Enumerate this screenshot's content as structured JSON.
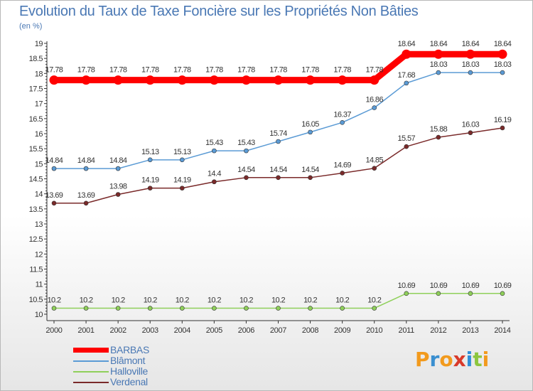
{
  "title": "Evolution du Taux de Taxe Foncière sur les Propriétés Non Bâties",
  "unit_label": "(en %)",
  "logo_text": "Proxiti",
  "colors": {
    "axis": "#333333",
    "grid_tick": "#333333",
    "label_text": "#333333",
    "title_text": "#4a78b4",
    "logo_letters": [
      "#f29a1d",
      "#3a8fd0",
      "#f29a1d",
      "#d83a2a",
      "#2f8fd8",
      "#8cc63f",
      "#f29a1d"
    ]
  },
  "chart_data": {
    "type": "line",
    "title": "Evolution du Taux de Taxe Foncière sur les Propriétés Non Bâties",
    "ylabel": "(en %)",
    "xlabel": "",
    "ylim": [
      10,
      19
    ],
    "yticks": [
      10,
      10.5,
      11,
      11.5,
      12,
      12.5,
      13,
      13.5,
      14,
      14.5,
      15,
      15.5,
      16,
      16.5,
      17,
      17.5,
      18,
      18.5,
      19
    ],
    "x": [
      2000,
      2001,
      2002,
      2003,
      2004,
      2005,
      2006,
      2007,
      2008,
      2009,
      2010,
      2011,
      2012,
      2013,
      2014
    ],
    "grid": false,
    "legend_position": "bottom-left",
    "series": [
      {
        "name": "BARBAS",
        "color": "#ff0000",
        "values": [
          17.78,
          17.78,
          17.78,
          17.78,
          17.78,
          17.78,
          17.78,
          17.78,
          17.78,
          17.78,
          17.78,
          18.64,
          18.64,
          18.64,
          18.64
        ],
        "labels": [
          "17.78",
          "17.78",
          "17.78",
          "17.78",
          "17.78",
          "17.78",
          "17.78",
          "17.78",
          "17.78",
          "17.78",
          "17.78",
          "18.64",
          "18.64",
          "18.64",
          "18.64"
        ]
      },
      {
        "name": "Blâmont",
        "color": "#5b9bd5",
        "values": [
          14.84,
          14.84,
          14.84,
          15.13,
          15.13,
          15.43,
          15.43,
          15.74,
          16.05,
          16.37,
          16.86,
          17.68,
          18.03,
          18.03,
          18.03
        ],
        "labels": [
          "14.84",
          "14.84",
          "14.84",
          "15.13",
          "15.13",
          "15.43",
          "15.43",
          "15.74",
          "16.05",
          "16.37",
          "16.86",
          "17.68",
          "18.03",
          "18.03",
          "18.03"
        ]
      },
      {
        "name": "Halloville",
        "color": "#8fd05a",
        "values": [
          10.2,
          10.2,
          10.2,
          10.2,
          10.2,
          10.2,
          10.2,
          10.2,
          10.2,
          10.2,
          10.2,
          10.69,
          10.69,
          10.69,
          10.69
        ],
        "labels": [
          "10.2",
          "10.2",
          "10.2",
          "10.2",
          "10.2",
          "10.2",
          "10.2",
          "10.2",
          "10.2",
          "10.2",
          "10.2",
          "10.69",
          "10.69",
          "10.69",
          "10.69"
        ]
      },
      {
        "name": "Verdenal",
        "color": "#7a2a2a",
        "values": [
          13.69,
          13.69,
          13.98,
          14.19,
          14.19,
          14.4,
          14.54,
          14.54,
          14.54,
          14.69,
          14.85,
          15.57,
          15.88,
          16.03,
          16.19
        ],
        "labels": [
          "13.69",
          "13.69",
          "13.98",
          "14.19",
          "14.19",
          "14.4",
          "14.54",
          "14.54",
          "14.54",
          "14.69",
          "14.85",
          "15.57",
          "15.88",
          "16.03",
          "16.19"
        ]
      }
    ]
  }
}
